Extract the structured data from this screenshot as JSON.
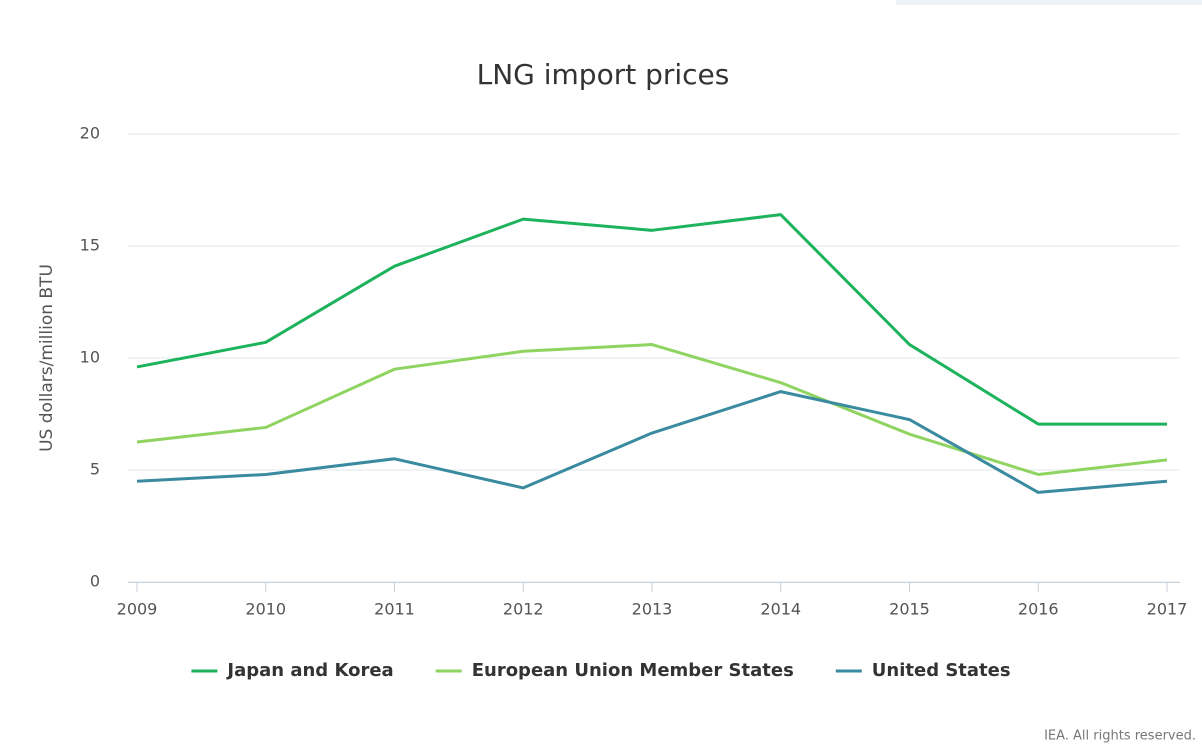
{
  "chart_data": {
    "type": "line",
    "title": "LNG import prices",
    "y_label": "US dollars/million BTU",
    "categories": [
      "2009",
      "2010",
      "2011",
      "2012",
      "2013",
      "2014",
      "2015",
      "2016",
      "2017"
    ],
    "series": [
      {
        "name": "Japan and Korea",
        "color": "#1db35c",
        "values": [
          9.6,
          10.7,
          14.1,
          16.2,
          15.7,
          16.4,
          10.6,
          7.05,
          7.05
        ]
      },
      {
        "name": "European Union Member States",
        "color": "#8fd460",
        "values": [
          6.25,
          6.9,
          9.5,
          10.3,
          10.6,
          8.9,
          6.6,
          4.8,
          5.45
        ]
      },
      {
        "name": "United States",
        "color": "#3a8aa0",
        "values": [
          4.5,
          4.8,
          5.5,
          4.2,
          6.65,
          8.5,
          7.25,
          4.0,
          4.5
        ]
      }
    ],
    "ylim": [
      0,
      20
    ],
    "yticks": [
      0,
      5,
      10,
      15,
      20
    ],
    "grid": true,
    "legend": "bottom",
    "source": "IEA. All rights reserved."
  }
}
